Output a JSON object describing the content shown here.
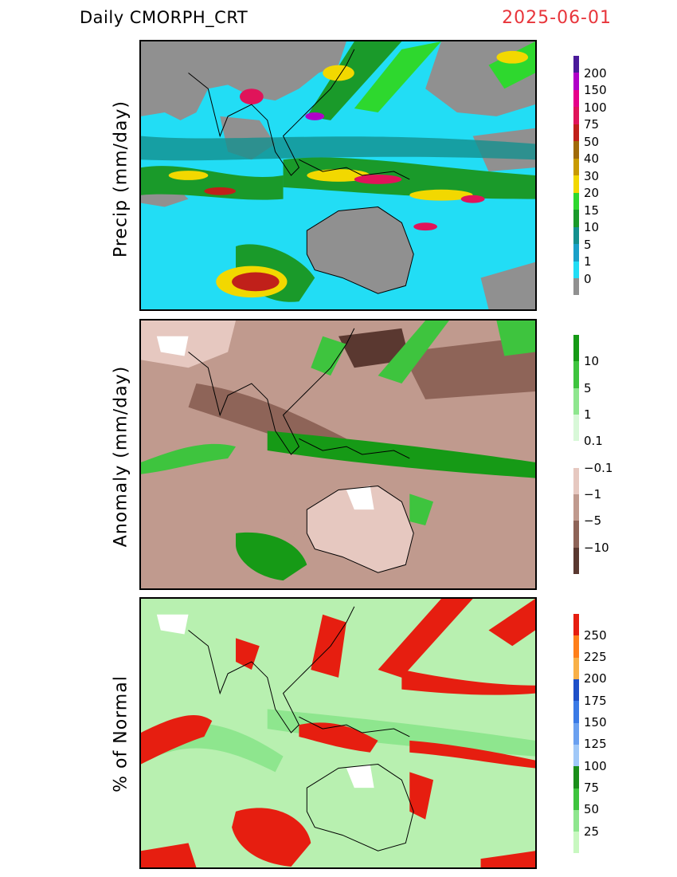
{
  "header": {
    "title": "Daily CMORPH_CRT",
    "date": "2025-06-01"
  },
  "panels": [
    {
      "id": "precip",
      "ylabel": "Precip (mm/day)",
      "colorbar": {
        "labels": [
          "200",
          "150",
          "100",
          "75",
          "50",
          "40",
          "30",
          "20",
          "15",
          "10",
          "5",
          "1",
          "0"
        ],
        "colors": [
          "#4a1a9a",
          "#b000c8",
          "#e6008a",
          "#e0145a",
          "#c0201a",
          "#a06a08",
          "#c89a00",
          "#f2d800",
          "#2ed82e",
          "#1a9a2a",
          "#14908e",
          "#1aa0c8",
          "#22ddf5",
          "#909090"
        ]
      }
    },
    {
      "id": "anomaly",
      "ylabel": "Anomaly (mm/day)",
      "colorbar": {
        "labels": [
          "10",
          "5",
          "1",
          "0.1",
          "−0.1",
          "−1",
          "−5",
          "−10"
        ],
        "colors": [
          "#169a16",
          "#3ec43e",
          "#8ee68e",
          "#d8f8d8",
          "#ffffff",
          "#e6c8c0",
          "#c09a8e",
          "#8e6458",
          "#5a3830"
        ]
      }
    },
    {
      "id": "percent",
      "ylabel": "% of Normal",
      "colorbar": {
        "labels": [
          "250",
          "225",
          "200",
          "175",
          "150",
          "125",
          "100",
          "75",
          "50",
          "25"
        ],
        "colors": [
          "#e61e10",
          "#ff7f1a",
          "#f8b048",
          "#1e50c8",
          "#3a7ae6",
          "#6aa0f0",
          "#a0c8f8",
          "#1a8e1a",
          "#3ec43e",
          "#8ee68e",
          "#c8f8c0"
        ]
      }
    }
  ]
}
